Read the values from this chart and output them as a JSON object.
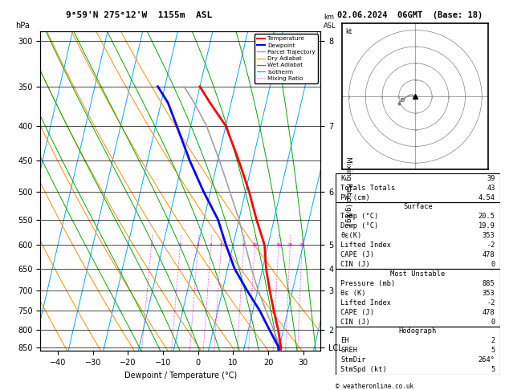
{
  "title_left": "9°59'N 275°12'W  1155m  ASL",
  "title_right": "02.06.2024  06GMT  (Base: 18)",
  "xlabel": "Dewpoint / Temperature (°C)",
  "ylabel_left": "hPa",
  "ylabel_right": "Mixing Ratio (g/kg)",
  "pressure_levels": [
    300,
    350,
    400,
    450,
    500,
    550,
    600,
    650,
    700,
    750,
    800,
    850
  ],
  "xlim": [
    -45,
    35
  ],
  "temp_profile_p": [
    855,
    850,
    800,
    750,
    700,
    650,
    600,
    550,
    500,
    450,
    400,
    370,
    350
  ],
  "temp_profile_t": [
    20.5,
    20.5,
    18.5,
    16.0,
    13.5,
    11.0,
    9.0,
    5.0,
    1.0,
    -4.0,
    -10.0,
    -16.0,
    -20.0
  ],
  "dewp_profile_p": [
    855,
    850,
    800,
    750,
    700,
    650,
    600,
    550,
    500,
    450,
    400,
    370,
    350
  ],
  "dewp_profile_t": [
    19.9,
    19.9,
    16.0,
    12.0,
    7.0,
    2.0,
    -2.0,
    -6.0,
    -12.0,
    -18.0,
    -24.0,
    -28.0,
    -32.0
  ],
  "parcel_profile_p": [
    855,
    850,
    800,
    750,
    700,
    650,
    600,
    550,
    500,
    450,
    400,
    370,
    350
  ],
  "parcel_profile_t": [
    20.2,
    20.2,
    17.2,
    13.8,
    10.2,
    6.8,
    3.5,
    0.0,
    -4.5,
    -9.5,
    -15.5,
    -20.5,
    -24.5
  ],
  "mixing_ratio_values": [
    1,
    2,
    3,
    4,
    5,
    8,
    10,
    16,
    20,
    25
  ],
  "km_ticks_p": [
    300,
    400,
    500,
    600,
    650,
    700,
    800,
    850
  ],
  "km_ticks_lbl": [
    "8",
    "7",
    "6",
    "5",
    "4",
    "3",
    "2",
    "LCL"
  ],
  "right_panel": {
    "K": 39,
    "Totals_Totals": 43,
    "PW_cm": 4.54,
    "Surface_Temp": 20.5,
    "Surface_Dewp": 19.9,
    "Surface_theta_e": 353,
    "Surface_LI": -2,
    "Surface_CAPE": 478,
    "Surface_CIN": 0,
    "MU_Pressure": 885,
    "MU_theta_e": 353,
    "MU_LI": -2,
    "MU_CAPE": 478,
    "MU_CIN": 0,
    "Hodo_EH": 2,
    "Hodo_SREH": 5,
    "Hodo_StmDir": 264,
    "Hodo_StmSpd": 5
  },
  "colors": {
    "temperature": "#FF0000",
    "dewpoint": "#0000FF",
    "parcel": "#A0A0A0",
    "dry_adiabat": "#FF8C00",
    "wet_adiabat": "#00AA00",
    "isotherm": "#00AAFF",
    "mixing_ratio": "#FF00FF",
    "background": "#FFFFFF"
  }
}
